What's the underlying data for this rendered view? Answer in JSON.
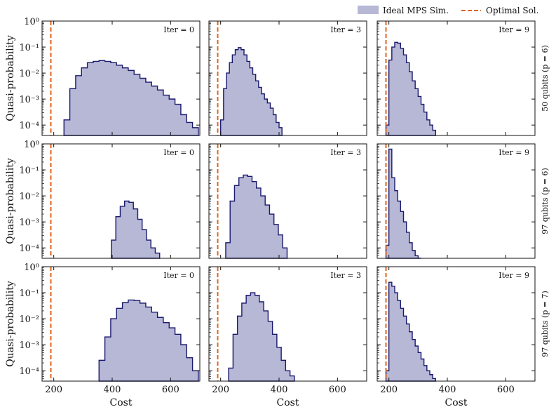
{
  "legend": {
    "items": [
      {
        "label": "Ideal MPS Sim.",
        "kind": "area",
        "color": "#b7b7d6"
      },
      {
        "label": "Optimal Sol.",
        "kind": "dashed-line",
        "color": "#e0651b"
      }
    ]
  },
  "colors": {
    "fill": "#b7b7d6",
    "outline": "#1a1a6e",
    "optimal": "#e0651b",
    "axis": "#111111"
  },
  "chart_data": {
    "type": "histogram-grid",
    "shared": {
      "xlim": [
        160,
        700
      ],
      "ylim_log10": [
        -4.4,
        0
      ],
      "xticks": [
        200,
        400,
        600
      ],
      "xtick_labels": [
        "200",
        "400",
        "600"
      ],
      "yticks_log10": [
        0,
        -1,
        -2,
        -3,
        -4
      ],
      "ytick_labels": [
        "10⁰",
        "10⁻¹",
        "10⁻²",
        "10⁻³",
        "10⁻⁴"
      ],
      "xlabel": "Cost",
      "ylabel": "Quasi-probability",
      "optimal_cost": 190
    },
    "rows": [
      {
        "label": "50 qubits (p = 6)"
      },
      {
        "label": "97 qubits (p = 6)"
      },
      {
        "label": "97 qubits (p = 7)"
      }
    ],
    "panels": [
      {
        "row": 0,
        "col": 0,
        "label": "Iter = 0",
        "x": [
          245,
          265,
          285,
          305,
          325,
          345,
          365,
          385,
          405,
          425,
          445,
          465,
          485,
          505,
          525,
          545,
          565,
          585,
          605,
          625,
          645,
          665,
          685
        ],
        "log10p": [
          -3.8,
          -2.6,
          -2.1,
          -1.8,
          -1.6,
          -1.55,
          -1.52,
          -1.55,
          -1.6,
          -1.7,
          -1.8,
          -1.9,
          -2.05,
          -2.2,
          -2.35,
          -2.5,
          -2.65,
          -2.85,
          -3.0,
          -3.2,
          -3.6,
          -3.9,
          -4.1
        ]
      },
      {
        "row": 0,
        "col": 1,
        "label": "Iter = 3",
        "x": [
          205,
          215,
          225,
          235,
          245,
          255,
          265,
          275,
          285,
          295,
          305,
          315,
          325,
          335,
          345,
          355,
          365,
          375,
          385,
          395,
          405
        ],
        "log10p": [
          -3.8,
          -2.6,
          -2.0,
          -1.6,
          -1.3,
          -1.1,
          -1.02,
          -1.1,
          -1.3,
          -1.55,
          -1.8,
          -2.05,
          -2.3,
          -2.55,
          -2.8,
          -3.0,
          -3.15,
          -3.35,
          -3.6,
          -3.9,
          -4.1
        ]
      },
      {
        "row": 0,
        "col": 2,
        "label": "Iter = 9",
        "x": [
          195,
          205,
          215,
          225,
          235,
          245,
          255,
          265,
          275,
          285,
          295,
          305,
          315,
          325,
          335,
          345,
          355
        ],
        "log10p": [
          -4.0,
          -1.5,
          -1.0,
          -0.82,
          -0.85,
          -1.05,
          -1.3,
          -1.6,
          -1.95,
          -2.3,
          -2.6,
          -2.9,
          -3.2,
          -3.5,
          -3.8,
          -4.0,
          -4.2
        ]
      },
      {
        "row": 1,
        "col": 0,
        "label": "Iter = 0",
        "x": [
          405,
          420,
          435,
          450,
          465,
          480,
          495,
          510,
          525,
          540,
          555
        ],
        "log10p": [
          -3.7,
          -2.8,
          -2.4,
          -2.2,
          -2.25,
          -2.5,
          -2.9,
          -3.3,
          -3.7,
          -4.0,
          -4.2
        ]
      },
      {
        "row": 1,
        "col": 1,
        "label": "Iter = 3",
        "x": [
          225,
          240,
          255,
          270,
          285,
          300,
          315,
          330,
          345,
          360,
          375,
          390,
          405,
          420
        ],
        "log10p": [
          -3.8,
          -2.2,
          -1.6,
          -1.3,
          -1.2,
          -1.25,
          -1.45,
          -1.7,
          -2.0,
          -2.35,
          -2.7,
          -3.1,
          -3.5,
          -4.0
        ]
      },
      {
        "row": 1,
        "col": 2,
        "label": "Iter = 9",
        "x": [
          195,
          205,
          215,
          225,
          235,
          245,
          255,
          265,
          275,
          285,
          295,
          305
        ],
        "log10p": [
          -3.9,
          -0.2,
          -1.3,
          -1.8,
          -2.2,
          -2.6,
          -3.0,
          -3.4,
          -3.8,
          -4.1,
          -4.3,
          -4.4
        ]
      },
      {
        "row": 2,
        "col": 0,
        "label": "Iter = 0",
        "x": [
          365,
          385,
          405,
          425,
          445,
          465,
          485,
          505,
          525,
          545,
          565,
          585,
          605,
          625,
          645,
          665,
          685
        ],
        "log10p": [
          -3.6,
          -2.7,
          -2.0,
          -1.6,
          -1.38,
          -1.28,
          -1.3,
          -1.4,
          -1.55,
          -1.75,
          -1.95,
          -2.15,
          -2.35,
          -2.6,
          -3.0,
          -3.5,
          -4.0
        ]
      },
      {
        "row": 2,
        "col": 1,
        "label": "Iter = 3",
        "x": [
          235,
          250,
          265,
          280,
          295,
          310,
          325,
          340,
          355,
          370,
          385,
          400,
          415,
          430,
          445
        ],
        "log10p": [
          -3.9,
          -2.6,
          -1.9,
          -1.4,
          -1.1,
          -1.0,
          -1.1,
          -1.35,
          -1.7,
          -2.1,
          -2.6,
          -3.1,
          -3.6,
          -4.0,
          -4.2
        ]
      },
      {
        "row": 2,
        "col": 2,
        "label": "Iter = 9",
        "x": [
          195,
          205,
          215,
          225,
          235,
          245,
          255,
          265,
          275,
          285,
          295,
          305,
          315,
          325,
          335,
          345,
          355
        ],
        "log10p": [
          -4.0,
          -0.6,
          -0.75,
          -1.0,
          -1.3,
          -1.6,
          -1.9,
          -2.2,
          -2.5,
          -2.8,
          -3.05,
          -3.3,
          -3.55,
          -3.8,
          -4.0,
          -4.15,
          -4.3
        ]
      }
    ]
  }
}
